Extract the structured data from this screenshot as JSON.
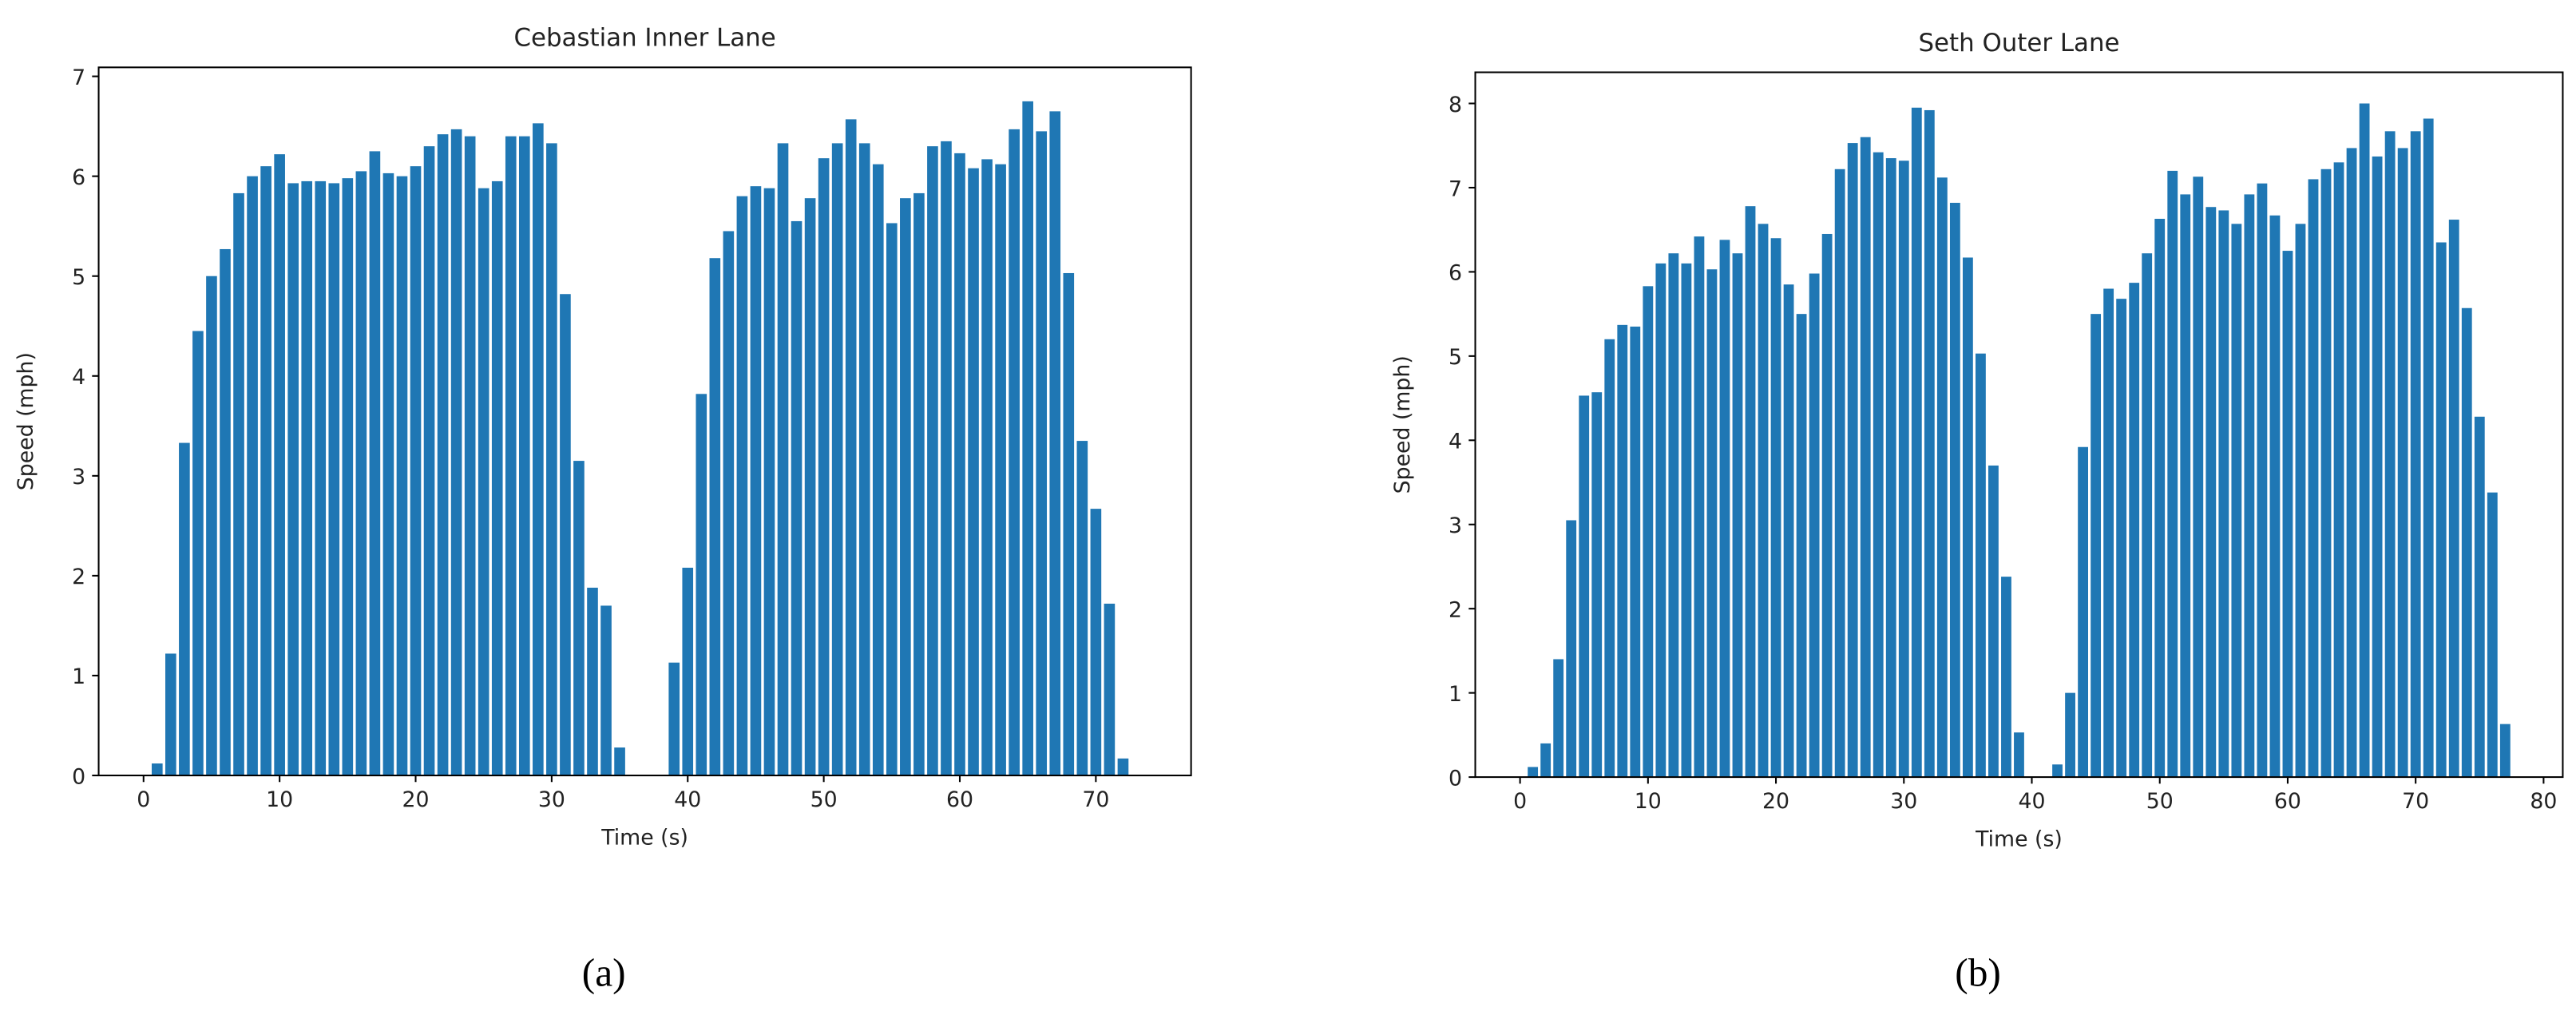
{
  "chart_data": [
    {
      "type": "bar",
      "title": "Cebastian Inner Lane",
      "xlabel": "Time (s)",
      "ylabel": "Speed (mph)",
      "caption": "(a)",
      "color": "#1f77b4",
      "x": [
        1,
        2,
        3,
        4,
        5,
        6,
        7,
        8,
        9,
        10,
        11,
        12,
        13,
        14,
        15,
        16,
        17,
        18,
        19,
        20,
        21,
        22,
        23,
        24,
        25,
        26,
        27,
        28,
        29,
        30,
        31,
        32,
        33,
        34,
        35,
        36,
        37,
        38,
        39,
        40,
        41,
        42,
        43,
        44,
        45,
        46,
        47,
        48,
        49,
        50,
        51,
        52,
        53,
        54,
        55,
        56,
        57,
        58,
        59,
        60,
        61,
        62,
        63,
        64,
        65,
        66,
        67,
        68,
        69,
        70,
        71,
        72
      ],
      "values": [
        0.12,
        1.22,
        3.33,
        4.45,
        5.0,
        5.27,
        5.83,
        6.0,
        6.1,
        6.22,
        5.93,
        5.95,
        5.95,
        5.93,
        5.98,
        6.05,
        6.25,
        6.03,
        6.0,
        6.1,
        6.3,
        6.42,
        6.47,
        6.4,
        5.88,
        5.95,
        6.4,
        6.4,
        6.53,
        6.33,
        4.82,
        3.15,
        1.88,
        1.7,
        0.28,
        0,
        0,
        0,
        1.13,
        2.08,
        3.82,
        5.18,
        5.45,
        5.8,
        5.9,
        5.88,
        6.33,
        5.55,
        5.78,
        6.18,
        6.33,
        6.57,
        6.33,
        6.12,
        5.53,
        5.78,
        5.83,
        6.3,
        6.35,
        6.23,
        6.08,
        6.17,
        6.12,
        6.47,
        6.75,
        6.45,
        6.65,
        5.03,
        3.35,
        2.67,
        1.72,
        0.17
      ],
      "xlim": [
        -3.3,
        77
      ],
      "ylim": [
        0,
        7.09
      ],
      "xticks": [
        0,
        10,
        20,
        30,
        40,
        50,
        60,
        70
      ],
      "yticks": [
        0,
        1,
        2,
        3,
        4,
        5,
        6,
        7
      ]
    },
    {
      "type": "bar",
      "title": "Seth Outer Lane",
      "xlabel": "Time (s)",
      "ylabel": "Speed (mph)",
      "caption": "(b)",
      "color": "#1f77b4",
      "x": [
        1,
        2,
        3,
        4,
        5,
        6,
        7,
        8,
        9,
        10,
        11,
        12,
        13,
        14,
        15,
        16,
        17,
        18,
        19,
        20,
        21,
        22,
        23,
        24,
        25,
        26,
        27,
        28,
        29,
        30,
        31,
        32,
        33,
        34,
        35,
        36,
        37,
        38,
        39,
        40,
        41,
        42,
        43,
        44,
        45,
        46,
        47,
        48,
        49,
        50,
        51,
        52,
        53,
        54,
        55,
        56,
        57,
        58,
        59,
        60,
        61,
        62,
        63,
        64,
        65,
        66,
        67,
        68,
        69,
        70,
        71,
        72,
        73,
        74,
        75,
        76,
        77
      ],
      "values": [
        0.12,
        0.4,
        1.4,
        3.05,
        4.53,
        4.57,
        5.2,
        5.37,
        5.35,
        5.83,
        6.1,
        6.22,
        6.1,
        6.42,
        6.03,
        6.38,
        6.22,
        6.78,
        6.57,
        6.4,
        5.85,
        5.5,
        5.98,
        6.45,
        7.22,
        7.53,
        7.6,
        7.42,
        7.35,
        7.32,
        7.95,
        7.92,
        7.12,
        6.82,
        6.17,
        5.03,
        3.7,
        2.38,
        0.53,
        0,
        0,
        0.15,
        1.0,
        3.92,
        5.5,
        5.8,
        5.68,
        5.87,
        6.22,
        6.63,
        7.2,
        6.92,
        7.13,
        6.77,
        6.73,
        6.57,
        6.92,
        7.05,
        6.67,
        6.25,
        6.57,
        7.1,
        7.22,
        7.3,
        7.47,
        8.0,
        7.37,
        7.67,
        7.47,
        7.67,
        7.82,
        6.35,
        6.62,
        5.57,
        4.28,
        3.38,
        0.63
      ],
      "xlim": [
        -3.5,
        81.5
      ],
      "ylim": [
        0,
        8.37
      ],
      "xticks": [
        0,
        10,
        20,
        30,
        40,
        50,
        60,
        70,
        80
      ],
      "yticks": [
        0,
        1,
        2,
        3,
        4,
        5,
        6,
        7,
        8
      ]
    }
  ]
}
